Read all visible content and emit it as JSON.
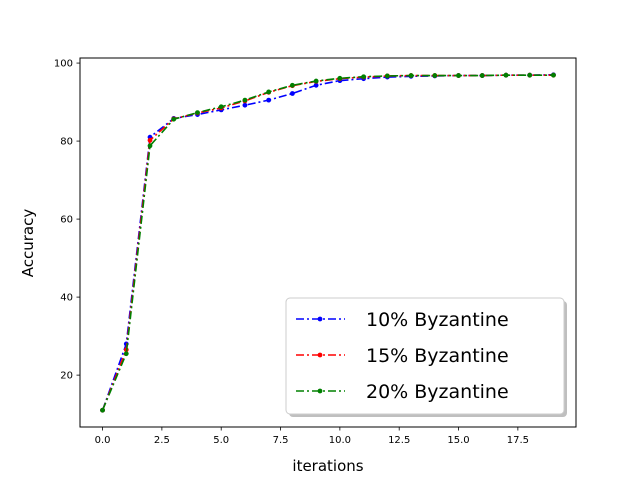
{
  "chart_data": {
    "type": "line",
    "xlabel": "iterations",
    "ylabel": "Accuracy",
    "xlim": [
      -0.95,
      19.95
    ],
    "ylim": [
      6.7,
      101.3
    ],
    "x_ticks": [
      0.0,
      2.5,
      5.0,
      7.5,
      10.0,
      12.5,
      15.0,
      17.5
    ],
    "x_tick_labels": [
      "0.0",
      "2.5",
      "5.0",
      "7.5",
      "10.0",
      "12.5",
      "15.0",
      "17.5"
    ],
    "y_ticks": [
      20,
      40,
      60,
      80,
      100
    ],
    "y_tick_labels": [
      "20",
      "40",
      "60",
      "80",
      "100"
    ],
    "grid": false,
    "legend_position": "lower-right",
    "x": [
      0,
      1,
      2,
      3,
      4,
      5,
      6,
      7,
      8,
      9,
      10,
      11,
      12,
      13,
      14,
      15,
      16,
      17,
      18,
      19
    ],
    "series": [
      {
        "name": "10% Byzantine",
        "color": "#0000ff",
        "values": [
          11.0,
          28.0,
          81.0,
          85.8,
          86.8,
          88.0,
          89.2,
          90.5,
          92.2,
          94.3,
          95.5,
          96.0,
          96.4,
          96.6,
          96.7,
          96.8,
          96.8,
          96.9,
          96.9,
          97.0
        ]
      },
      {
        "name": "15% Byzantine",
        "color": "#ff0000",
        "values": [
          11.0,
          26.5,
          80.2,
          85.7,
          87.2,
          88.5,
          90.3,
          92.5,
          94.2,
          95.3,
          96.0,
          96.4,
          96.7,
          96.8,
          96.8,
          96.8,
          96.8,
          96.9,
          96.9,
          96.9
        ]
      },
      {
        "name": "20% Byzantine",
        "color": "#008000",
        "values": [
          11.0,
          25.5,
          78.8,
          85.6,
          87.3,
          88.8,
          90.5,
          92.6,
          94.3,
          95.4,
          96.1,
          96.5,
          96.7,
          96.8,
          96.8,
          96.8,
          96.8,
          96.9,
          96.9,
          96.9
        ]
      }
    ]
  }
}
